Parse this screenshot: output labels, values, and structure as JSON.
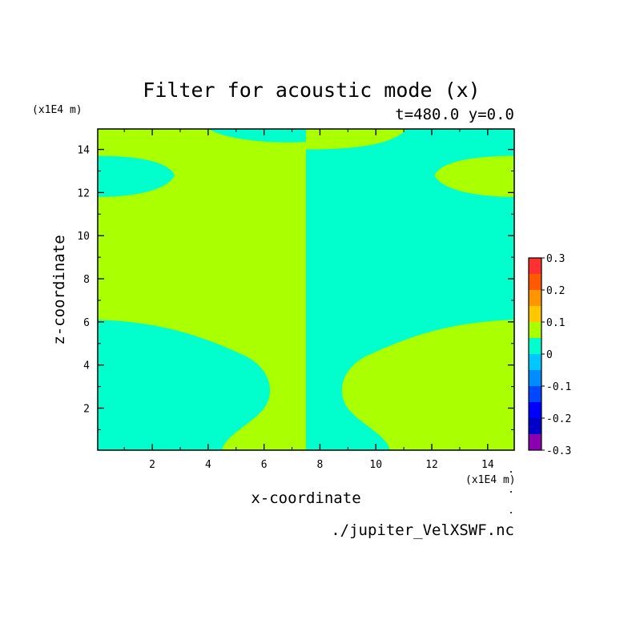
{
  "chart_data": {
    "type": "heatmap",
    "title": "Filter for acoustic mode (x)",
    "subtitle": "t=480.0 y=0.0",
    "xlabel": "x-coordinate",
    "ylabel": "z-coordinate",
    "x_unit": "(x1E4 m)",
    "y_unit": "(x1E4 m)",
    "xlim": [
      0.05,
      14.95
    ],
    "ylim": [
      0.05,
      14.95
    ],
    "xticks": [
      2,
      4,
      6,
      8,
      10,
      12,
      14
    ],
    "yticks": [
      2,
      4,
      6,
      8,
      10,
      12,
      14
    ],
    "xtick_labels": [
      "2",
      "4",
      "6",
      "8",
      "10",
      "12",
      "14"
    ],
    "ytick_labels": [
      "2",
      "4",
      "6",
      "8",
      "10",
      "12",
      "14"
    ],
    "grid": false,
    "colorbar": {
      "levels": [
        -0.3,
        -0.25,
        -0.2,
        -0.15,
        -0.1,
        -0.05,
        0,
        0.05,
        0.1,
        0.15,
        0.2,
        0.25,
        0.3
      ],
      "colors": [
        "#8b00b0",
        "#0000c8",
        "#0000ff",
        "#0048ff",
        "#008cff",
        "#00c8ff",
        "#00ffcc",
        "#aaff00",
        "#ffc800",
        "#ff9600",
        "#ff5a00",
        "#ff3030",
        "#ffaaaa"
      ],
      "tick_values": [
        -0.3,
        -0.2,
        -0.1,
        0,
        0.1,
        0.2,
        0.3
      ],
      "tick_labels": [
        "-0.3",
        "-0.2",
        "-0.1",
        "0",
        "0.1",
        "0.2",
        "0.3"
      ]
    },
    "background_value_color": "#aaff00",
    "negative_region_color": "#00ffcc",
    "regions": {
      "center_split_x": 7.5,
      "top_lobes": [
        {
          "x": [
            4.0,
            7.5
          ],
          "y": [
            14.35,
            14.95
          ]
        },
        {
          "x": [
            7.5,
            11.1
          ],
          "y": [
            14.0,
            14.95
          ]
        }
      ],
      "side_lobes": [
        {
          "x": [
            0.05,
            2.8
          ],
          "y": [
            11.8,
            13.7
          ]
        },
        {
          "x": [
            12.1,
            14.95
          ],
          "y": [
            11.8,
            13.7
          ]
        }
      ],
      "bottom_lobes": [
        {
          "x": [
            0.05,
            6.0
          ],
          "y": [
            0.05,
            6.1
          ]
        },
        {
          "x": [
            9.0,
            14.95
          ],
          "y": [
            0.05,
            6.1
          ]
        }
      ]
    },
    "source": "./jupiter_VelXSWF.nc"
  }
}
